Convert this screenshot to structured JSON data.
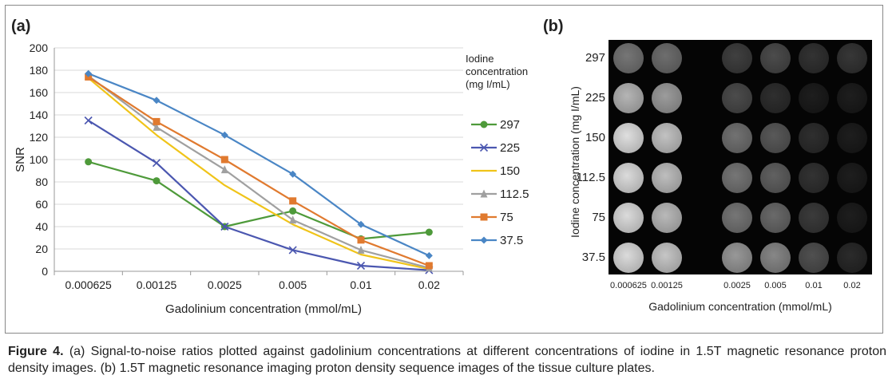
{
  "panels": {
    "a_label": "(a)",
    "b_label": "(b)"
  },
  "chart_data": {
    "type": "line",
    "categories": [
      "0.000625",
      "0.00125",
      "0.0025",
      "0.005",
      "0.01",
      "0.02"
    ],
    "xlabel": "Gadolinium concentration (mmol/mL)",
    "ylabel": "SNR",
    "ylim": [
      0,
      200
    ],
    "yticks": [
      0,
      20,
      40,
      60,
      80,
      100,
      120,
      140,
      160,
      180,
      200
    ],
    "grid": "horizontal",
    "legend_title": "Iodine concentration (mg I/mL)",
    "legend_position": "right",
    "series": [
      {
        "name": "297",
        "color": "#4e9a3a",
        "marker": "circle",
        "values": [
          98,
          81,
          40,
          54,
          29,
          35
        ]
      },
      {
        "name": "225",
        "color": "#4b57b0",
        "marker": "x",
        "values": [
          135,
          97,
          40,
          19,
          5,
          1
        ]
      },
      {
        "name": "150",
        "color": "#f0c419",
        "marker": "none",
        "values": [
          173,
          122,
          77,
          42,
          15,
          2
        ]
      },
      {
        "name": "112.5",
        "color": "#a0a0a0",
        "marker": "triangle",
        "values": [
          175,
          129,
          91,
          46,
          19,
          3
        ]
      },
      {
        "name": "75",
        "color": "#e07a2f",
        "marker": "square",
        "values": [
          174,
          134,
          100,
          63,
          28,
          5
        ]
      },
      {
        "name": "37.5",
        "color": "#4a86c5",
        "marker": "diamond",
        "values": [
          177,
          153,
          122,
          87,
          42,
          14
        ]
      }
    ]
  },
  "mri": {
    "ylabel": "Iodine concentration (mg I/mL)",
    "xlabel": "Gadolinium concentration (mmol/mL)",
    "rows": [
      "297",
      "225",
      "150",
      "112.5",
      "75",
      "37.5"
    ],
    "cols": [
      "0.000625",
      "0.00125",
      "0.0025",
      "0.005",
      "0.01",
      "0.02"
    ],
    "intensity": [
      [
        0.42,
        0.38,
        0.16,
        0.22,
        0.1,
        0.12
      ],
      [
        0.72,
        0.6,
        0.22,
        0.08,
        0.0,
        0.0
      ],
      [
        0.92,
        0.78,
        0.4,
        0.28,
        0.08,
        0.0
      ],
      [
        0.9,
        0.76,
        0.42,
        0.32,
        0.1,
        0.0
      ],
      [
        0.9,
        0.74,
        0.42,
        0.36,
        0.14,
        0.0
      ],
      [
        0.9,
        0.8,
        0.58,
        0.5,
        0.24,
        0.06
      ]
    ]
  },
  "caption": {
    "label": "Figure 4.",
    "text": " (a) Signal-to-noise ratios plotted against gadolinium concentrations at different concentrations of iodine in 1.5T magnetic resonance proton density images. (b) 1.5T magnetic resonance imaging proton density sequence images of the tissue culture plates."
  }
}
